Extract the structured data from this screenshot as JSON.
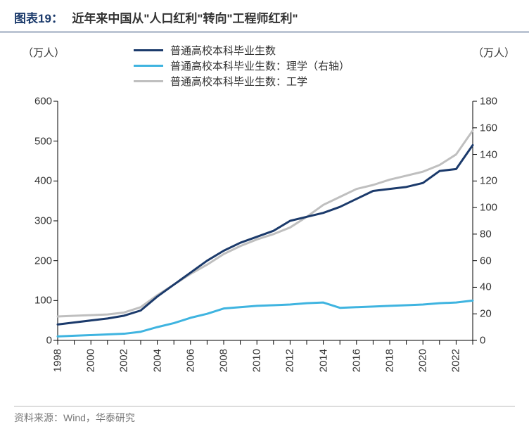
{
  "header": {
    "prefix": "图表19：",
    "title": "近年来中国从\"人口红利\"转向\"工程师红利\""
  },
  "chart": {
    "type": "line",
    "y_left_label": "（万人）",
    "y_right_label": "（万人）",
    "background_color": "#ffffff",
    "axis_color": "#000000",
    "title_fontsize": 17,
    "label_fontsize": 15,
    "tick_fontsize": 15,
    "x_tick_rotation": -90,
    "line_width": 3,
    "series": [
      {
        "name": "普通高校本科毕业生数",
        "color": "#1b3a6b",
        "axis": "left",
        "values": [
          40,
          45,
          50,
          55,
          62,
          75,
          110,
          140,
          170,
          200,
          225,
          245,
          260,
          275,
          300,
          310,
          320,
          335,
          355,
          375,
          380,
          385,
          395,
          425,
          430,
          490
        ]
      },
      {
        "name": "普通高校本科毕业生数：理学（右轴）",
        "color": "#3fb4e0",
        "axis": "right",
        "values": [
          3,
          3.5,
          4,
          4.5,
          5,
          6.5,
          10,
          13,
          17,
          20,
          24,
          25,
          26,
          26.5,
          27,
          28,
          28.5,
          24.5,
          25,
          25.5,
          26,
          26.5,
          27,
          28,
          28.5,
          30
        ]
      },
      {
        "name": "普通高校本科毕业生数：工学",
        "color": "#bfbfbf",
        "axis": "right",
        "values": [
          18,
          18.5,
          19,
          19.5,
          21,
          25,
          34,
          42,
          50,
          57,
          65,
          71,
          76,
          80,
          85,
          93,
          102,
          108,
          114,
          117,
          121,
          124,
          127,
          132,
          140,
          158
        ]
      }
    ],
    "legend": {
      "position": "top-center"
    },
    "x": {
      "start": 1998,
      "end": 2023,
      "tick_step": 2,
      "labels": [
        "1998",
        "2000",
        "2002",
        "2004",
        "2006",
        "2008",
        "2010",
        "2012",
        "2014",
        "2016",
        "2018",
        "2020",
        "2022"
      ]
    },
    "y_left": {
      "min": 0,
      "max": 600,
      "tick_step": 100
    },
    "y_right": {
      "min": 0,
      "max": 180,
      "tick_step": 20
    }
  },
  "footer": {
    "text": "资料来源：Wind，华泰研究"
  }
}
